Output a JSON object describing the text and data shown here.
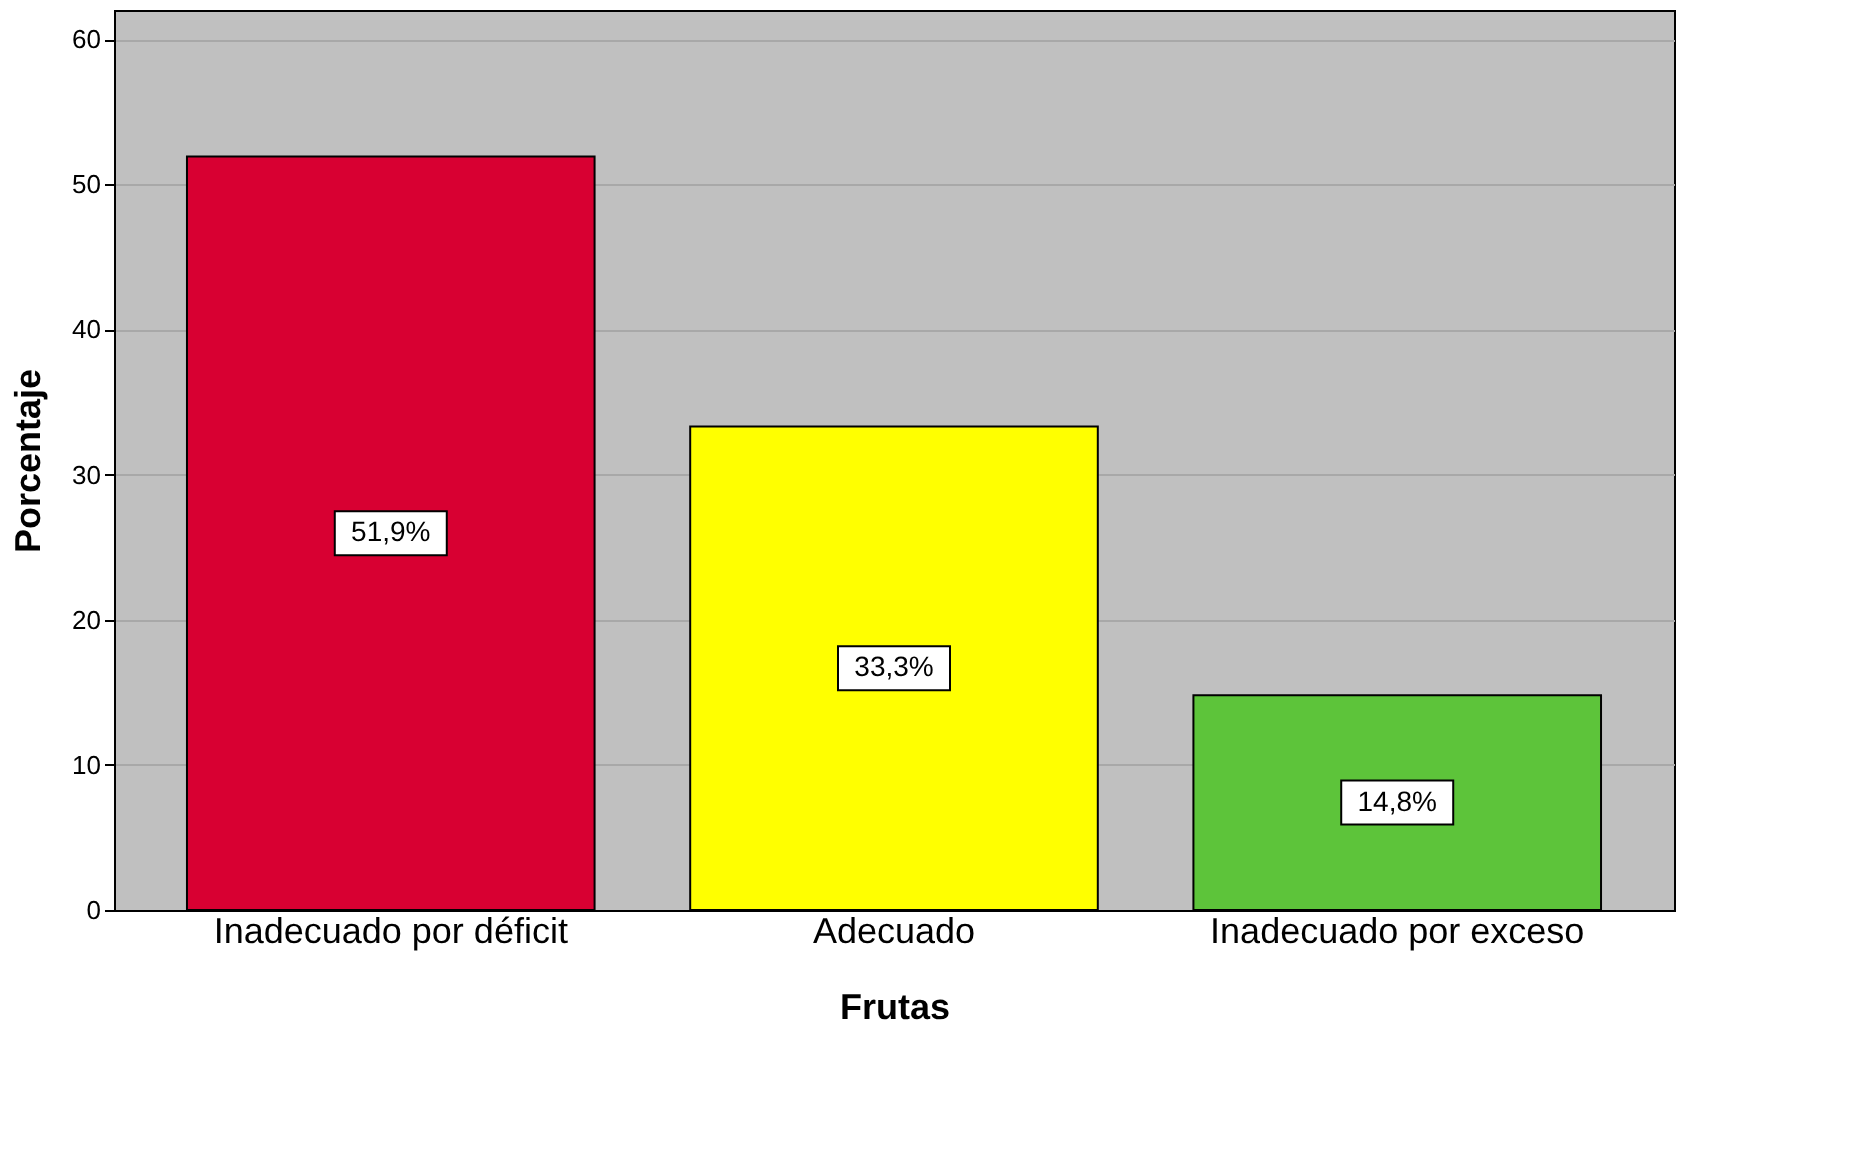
{
  "chart_data": {
    "type": "bar",
    "xlabel": "Frutas",
    "ylabel": "Porcentaje",
    "categories": [
      "Inadecuado por déficit",
      "Adecuado",
      "Inadecuado por exceso"
    ],
    "values": [
      51.9,
      33.3,
      14.8
    ],
    "colors": [
      "#d80032",
      "#ffff00",
      "#5dc43a"
    ],
    "value_labels": [
      "51,9%",
      "33,3%",
      "14,8%"
    ],
    "ylim": [
      0,
      62
    ],
    "yticks": [
      0,
      10,
      20,
      30,
      40,
      50,
      60
    ],
    "grid": "y"
  }
}
